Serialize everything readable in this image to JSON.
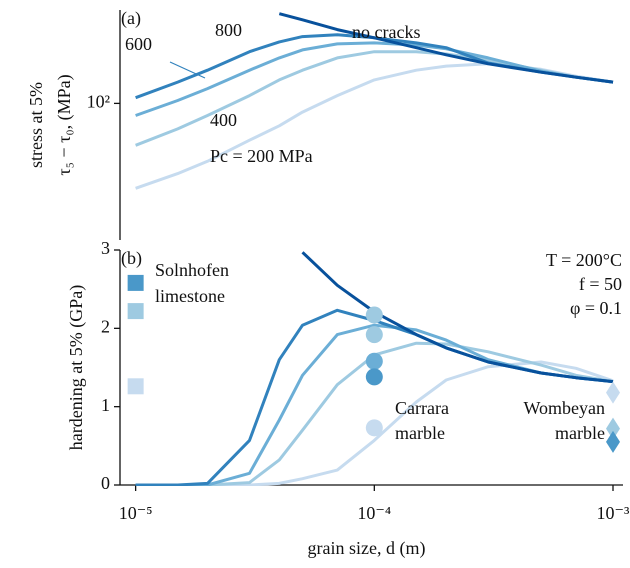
{
  "chart_data": [
    {
      "type": "line",
      "panel_label": "(a)",
      "ylabel": [
        "stress at 5%",
        "τ₅ − τ₀, (MPa)"
      ],
      "xscale": "log",
      "yscale": "log",
      "xlim": [
        8.6e-06,
        0.001
      ],
      "ylim": [
        16,
        350
      ],
      "yticks": [
        {
          "value": 100,
          "label": "10²"
        }
      ],
      "x": [
        1e-05,
        1.5e-05,
        2e-05,
        3e-05,
        4e-05,
        5e-05,
        7e-05,
        0.0001,
        0.00015,
        0.0002,
        0.0003,
        0.0005,
        0.0007,
        0.001
      ],
      "series": [
        {
          "name": "no cracks",
          "color": "#08519c",
          "values": [
            null,
            null,
            null,
            null,
            333,
            307,
            269,
            241,
            211,
            192,
            170,
            152,
            142,
            133
          ]
        },
        {
          "name": "800",
          "color": "#3182bd",
          "values": [
            108,
            133,
            156,
            200,
            228,
            245,
            251,
            241,
            225,
            211,
            172,
            152,
            142,
            133
          ]
        },
        {
          "name": "600",
          "color": "#6baed6",
          "values": [
            85,
            104,
            122,
            156,
            184,
            205,
            222,
            225,
            219,
            208,
            184,
            154,
            142,
            133
          ]
        },
        {
          "name": "400",
          "color": "#9ecae1",
          "values": [
            57,
            71,
            85,
            111,
            137,
            156,
            184,
            200,
            200,
            194,
            179,
            156,
            142,
            133
          ]
        },
        {
          "name": "Pc = 200 MPa",
          "color": "#c6dbef",
          "values": [
            32,
            39,
            46,
            61,
            74,
            89,
            111,
            137,
            156,
            165,
            170,
            158,
            144,
            133
          ]
        }
      ]
    },
    {
      "type": "line",
      "panel_label": "(b)",
      "ylabel": "hardening at 5% (GPa)",
      "xlabel": "grain size, d (m)",
      "xscale": "log",
      "xlim": [
        8.6e-06,
        0.001
      ],
      "ylim": [
        0,
        3
      ],
      "xticks": [
        {
          "value": 1e-05,
          "label": "10⁻⁵"
        },
        {
          "value": 0.0001,
          "label": "10⁻⁴"
        },
        {
          "value": 0.001,
          "label": "10⁻³"
        }
      ],
      "yticks": [
        0,
        1,
        2,
        3
      ],
      "conditions": [
        "T = 200°C",
        "f = 50",
        "φ = 0.1"
      ],
      "x": [
        1e-05,
        1.5e-05,
        2e-05,
        3e-05,
        4e-05,
        5e-05,
        7e-05,
        0.0001,
        0.00015,
        0.0002,
        0.0003,
        0.0005,
        0.0007,
        0.001
      ],
      "series": [
        {
          "color": "#08519c",
          "values": [
            null,
            null,
            null,
            null,
            null,
            2.97,
            2.55,
            2.21,
            1.92,
            1.75,
            1.57,
            1.43,
            1.37,
            1.32
          ]
        },
        {
          "color": "#3182bd",
          "values": [
            0,
            0,
            0.02,
            0.57,
            1.6,
            2.04,
            2.23,
            2.1,
            1.92,
            1.75,
            1.57,
            1.43,
            1.37,
            1.32
          ]
        },
        {
          "color": "#6baed6",
          "values": [
            0,
            0,
            0,
            0.15,
            0.83,
            1.4,
            1.92,
            2.04,
            1.98,
            1.85,
            1.6,
            1.43,
            1.37,
            1.32
          ]
        },
        {
          "color": "#9ecae1",
          "values": [
            0,
            0,
            0,
            0.03,
            0.32,
            0.7,
            1.28,
            1.66,
            1.81,
            1.8,
            1.7,
            1.53,
            1.4,
            1.32
          ]
        },
        {
          "color": "#c6dbef",
          "values": [
            0,
            0,
            0,
            0,
            0.02,
            0.08,
            0.19,
            0.57,
            1.06,
            1.34,
            1.51,
            1.57,
            1.49,
            1.33
          ]
        }
      ],
      "samples": [
        {
          "name": [
            "Solnhofen",
            "limestone"
          ],
          "marker": "square",
          "x": [
            1e-05,
            1e-05,
            1e-05
          ],
          "values": [
            2.58,
            2.22,
            1.26
          ],
          "colors": [
            "#4a98c9",
            "#9ecae1",
            "#c6dbef"
          ]
        },
        {
          "name": [
            "Carrara",
            "marble"
          ],
          "marker": "circle",
          "x": [
            0.0001,
            0.0001,
            0.0001,
            0.0001,
            0.0001
          ],
          "values": [
            2.17,
            1.92,
            1.58,
            1.38,
            0.73
          ],
          "colors": [
            "#9ecae1",
            "#9ecae1",
            "#6baed6",
            "#4a98c9",
            "#c6dbef"
          ]
        },
        {
          "name": [
            "Wombeyan",
            "marble"
          ],
          "marker": "diamond",
          "x": [
            0.001,
            0.001,
            0.001
          ],
          "values": [
            1.18,
            0.72,
            0.55
          ],
          "colors": [
            "#c6dbef",
            "#9ecae1",
            "#4a98c9"
          ]
        }
      ]
    }
  ]
}
